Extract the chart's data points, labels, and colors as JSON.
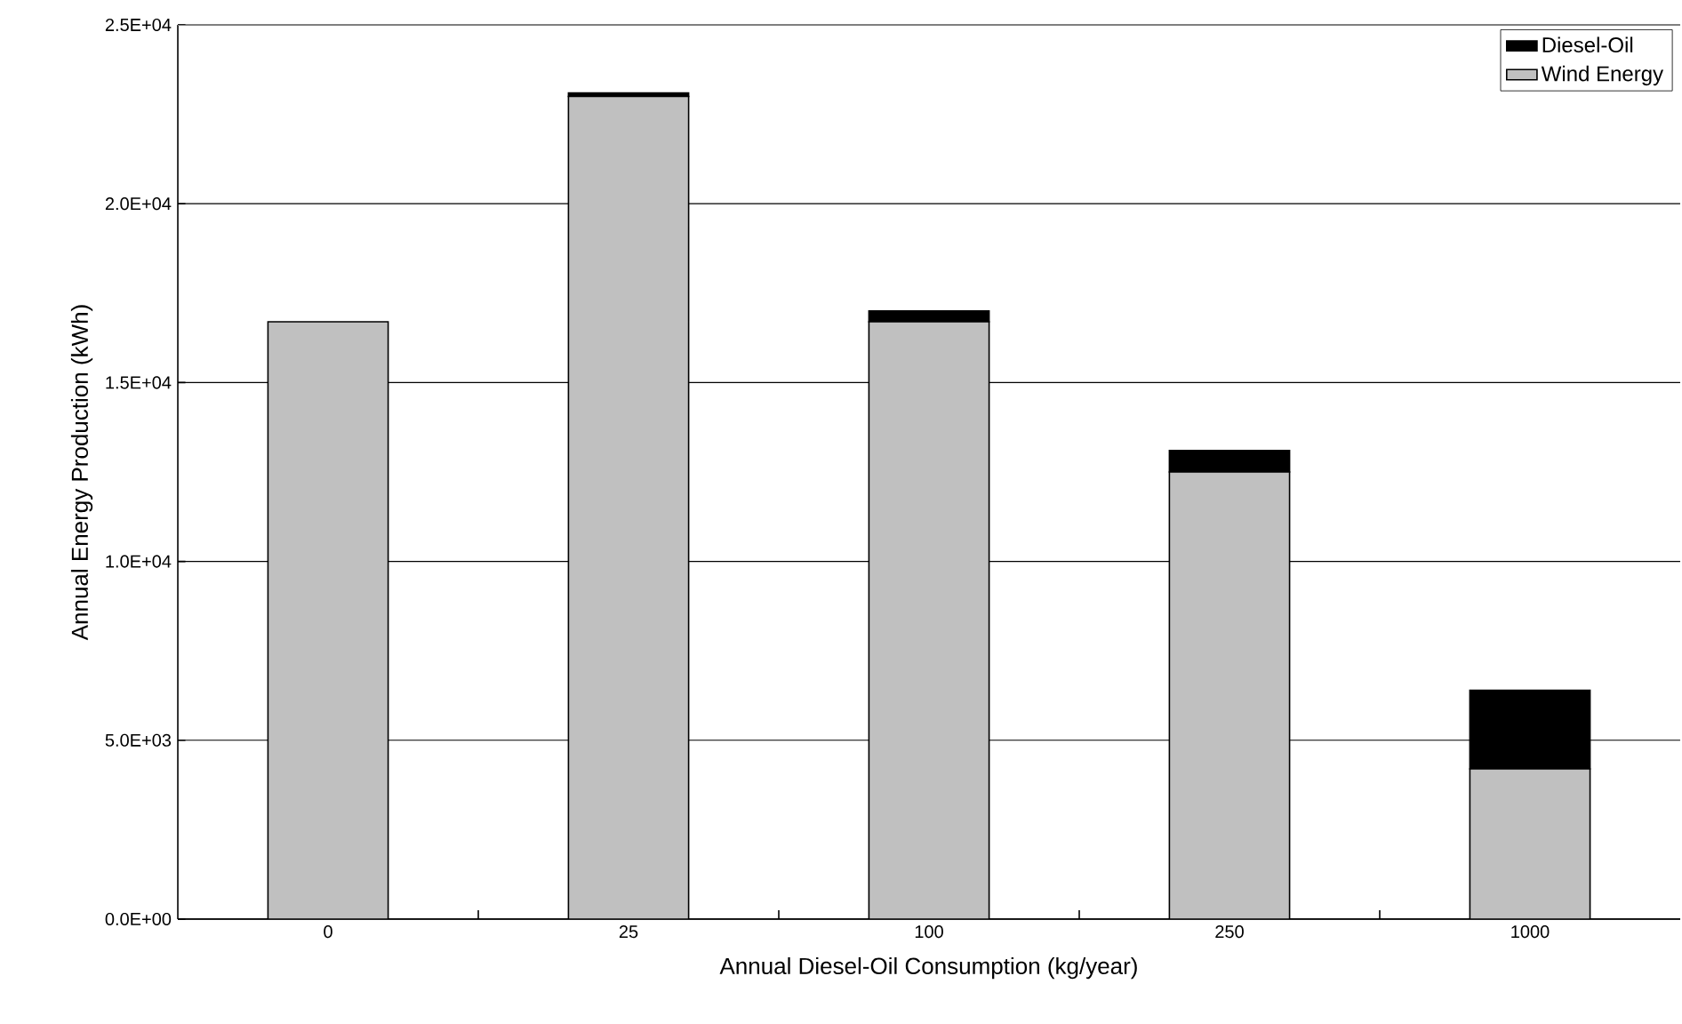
{
  "chart_data": {
    "type": "bar",
    "stacked": true,
    "xlabel": "Annual Diesel-Oil Consumption (kg/year)",
    "ylabel": "Annual Energy Production (kWh)",
    "categories": [
      "0",
      "25",
      "100",
      "250",
      "1000"
    ],
    "series": [
      {
        "name": "Wind Energy",
        "color": "#c0c0c0",
        "values": [
          16700,
          23000,
          16700,
          12500,
          4200
        ]
      },
      {
        "name": "Diesel-Oil",
        "color": "#000000",
        "values": [
          0,
          100,
          300,
          600,
          2200
        ]
      }
    ],
    "ylim": [
      0,
      25000
    ],
    "yticks": [
      {
        "value": 0,
        "label": "0.0E+00"
      },
      {
        "value": 5000,
        "label": "5.0E+03"
      },
      {
        "value": 10000,
        "label": "1.0E+04"
      },
      {
        "value": 15000,
        "label": "1.5E+04"
      },
      {
        "value": 20000,
        "label": "2.0E+04"
      },
      {
        "value": 25000,
        "label": "2.5E+04"
      }
    ],
    "grid": "y",
    "legend": "top right"
  }
}
